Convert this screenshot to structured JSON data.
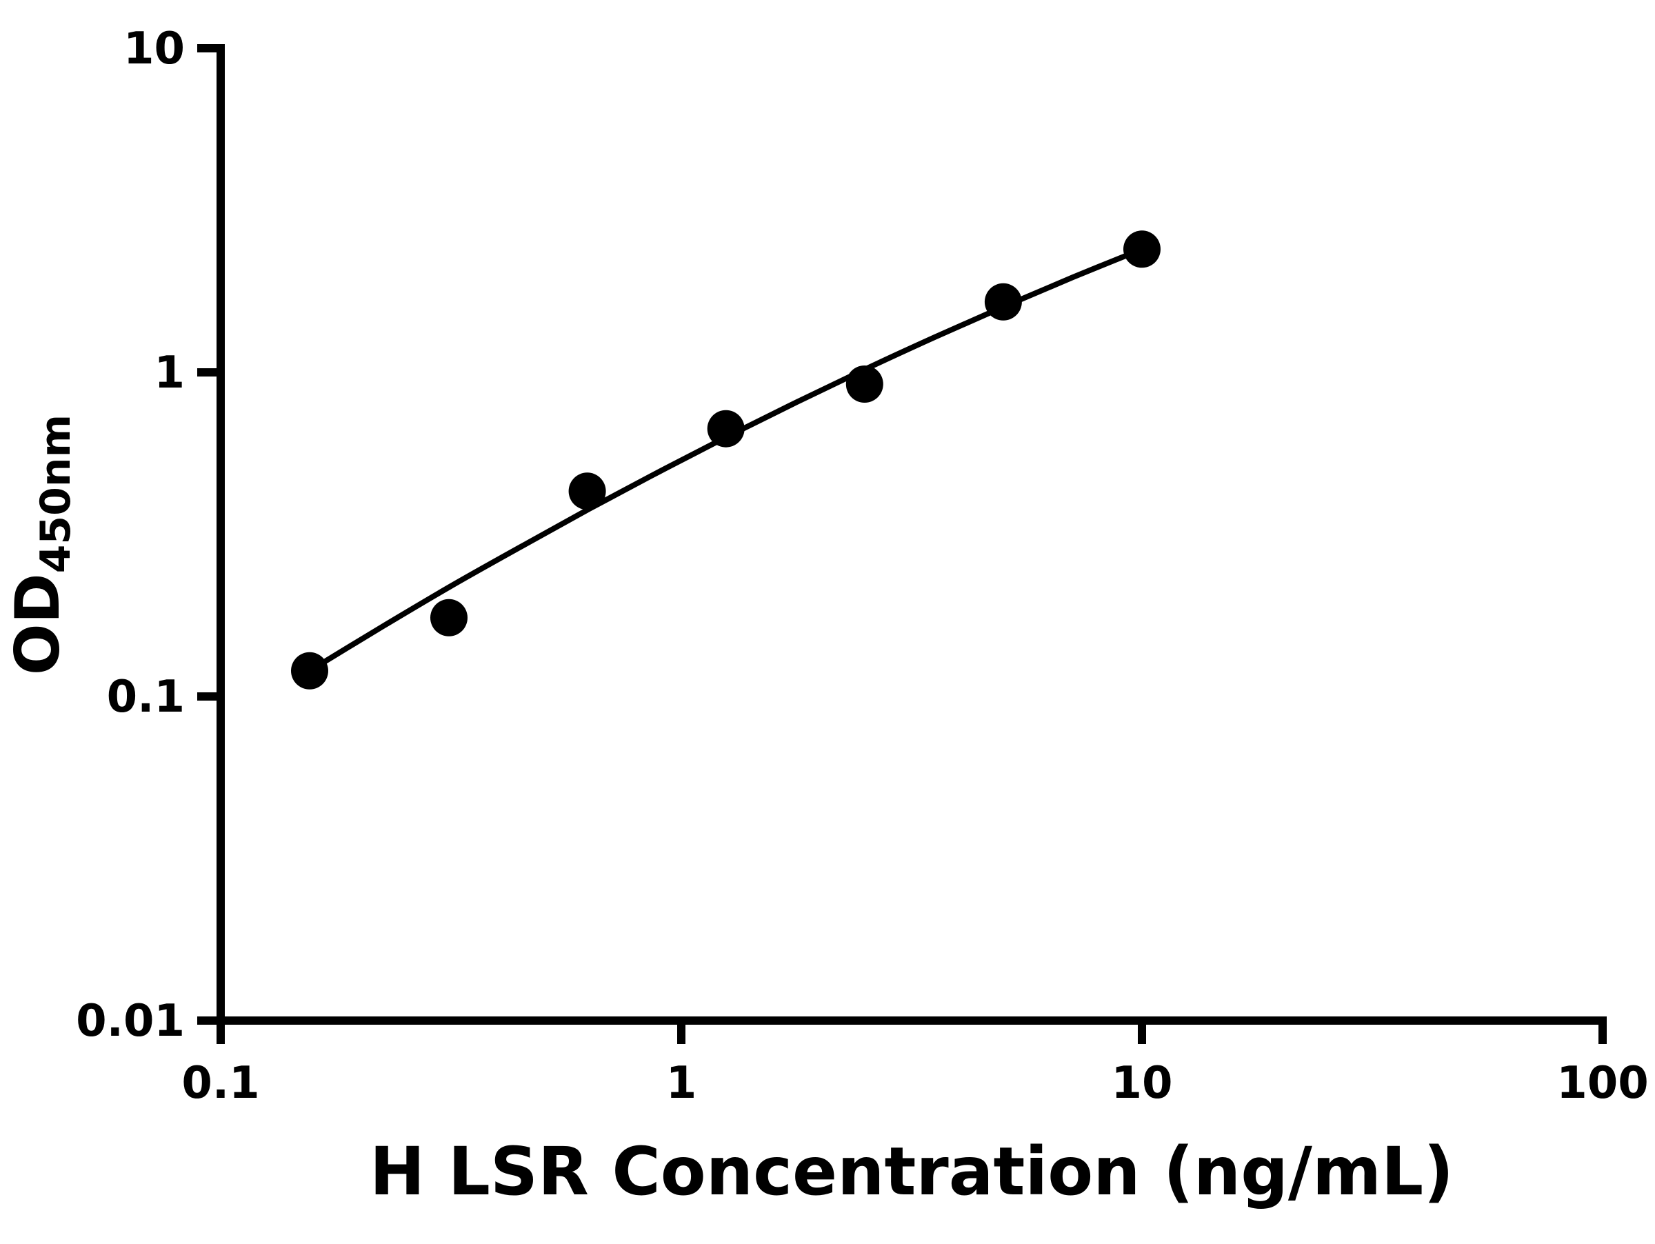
{
  "chart_data": {
    "type": "scatter",
    "title": "",
    "xlabel": "H LSR Concentration (ng/mL)",
    "ylabel": "OD",
    "ylabel_subscript": "450nm",
    "x_scale": "log",
    "y_scale": "log",
    "xlim": [
      0.1,
      100
    ],
    "ylim": [
      0.01,
      10
    ],
    "x_ticks": [
      0.1,
      1,
      10,
      100
    ],
    "x_tick_labels": [
      "0.1",
      "1",
      "10",
      "100"
    ],
    "y_ticks": [
      0.01,
      0.1,
      1,
      10
    ],
    "y_tick_labels": [
      "0.01",
      "0.1",
      "1",
      "10"
    ],
    "grid": false,
    "legend": null,
    "marker_color": "#000000",
    "line_color": "#000000",
    "background_color": "#ffffff",
    "points": [
      {
        "x": 0.156,
        "y": 0.12
      },
      {
        "x": 0.313,
        "y": 0.175
      },
      {
        "x": 0.625,
        "y": 0.43
      },
      {
        "x": 1.25,
        "y": 0.67
      },
      {
        "x": 2.5,
        "y": 0.92
      },
      {
        "x": 5,
        "y": 1.65
      },
      {
        "x": 10,
        "y": 2.4
      }
    ],
    "fit_curve_points": [
      [
        0.156,
        0.12
      ],
      [
        0.224,
        0.164
      ],
      [
        0.316,
        0.219
      ],
      [
        0.447,
        0.289
      ],
      [
        0.631,
        0.379
      ],
      [
        0.891,
        0.492
      ],
      [
        1.259,
        0.634
      ],
      [
        1.778,
        0.809
      ],
      [
        2.512,
        1.024
      ],
      [
        3.548,
        1.284
      ],
      [
        5.012,
        1.595
      ],
      [
        7.079,
        1.965
      ],
      [
        10.0,
        2.399
      ]
    ]
  }
}
